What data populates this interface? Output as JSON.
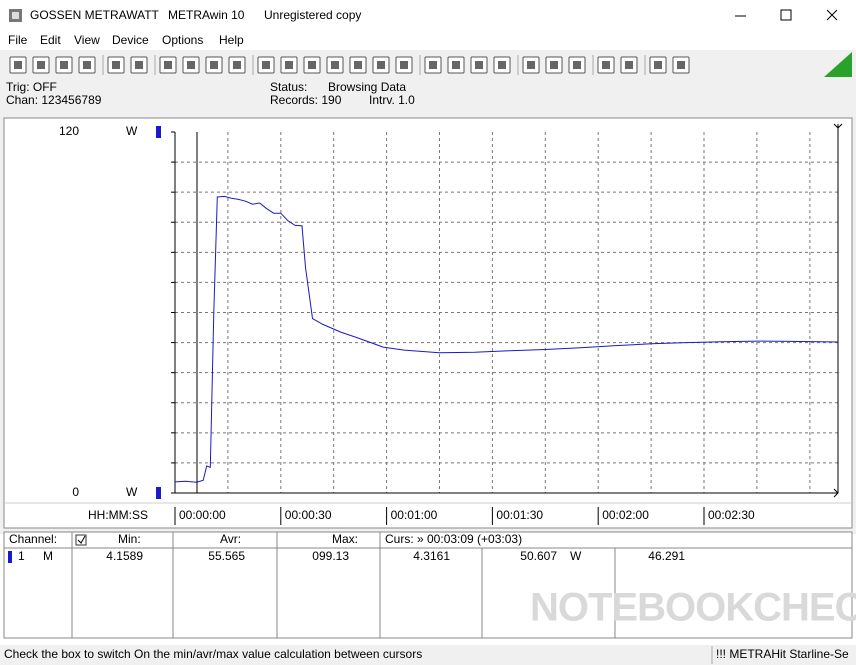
{
  "window": {
    "app": "GOSSEN METRAWATT",
    "product": "METRAwin 10",
    "license": "Unregistered copy"
  },
  "menu": [
    "File",
    "Edit",
    "View",
    "Device",
    "Options",
    "Help"
  ],
  "info": {
    "trig": "Trig: OFF",
    "chan": "Chan:  123456789",
    "status_label": "Status:",
    "status": "Browsing Data",
    "records": "Records: 190",
    "interval": "Intrv. 1.0"
  },
  "chart_data": {
    "type": "line",
    "color": "#1a1acc",
    "x": [
      0,
      3,
      6,
      8,
      9,
      10,
      11,
      12,
      14,
      16,
      18,
      20,
      22,
      24,
      26,
      28,
      30,
      32,
      34,
      36,
      37,
      39,
      42,
      47,
      52,
      59,
      65,
      75,
      85,
      95,
      105,
      115,
      125,
      135,
      145,
      155,
      165,
      175,
      188
    ],
    "values": [
      3.7,
      3.9,
      3.6,
      4.2,
      9,
      8.5,
      60,
      98.4,
      98.6,
      98,
      97.6,
      97,
      96,
      96.4,
      94.5,
      93,
      93,
      90.5,
      89,
      88.8,
      75,
      58,
      56,
      53.5,
      51.5,
      48.5,
      47.5,
      46.6,
      46.8,
      47.3,
      47.7,
      48.3,
      49,
      49.6,
      50,
      50.3,
      50.5,
      50.4,
      50.2
    ],
    "xlim": [
      0,
      188
    ],
    "ylim": [
      0,
      120
    ],
    "xticks": [
      {
        "value": 0,
        "label": "00:00:00"
      },
      {
        "value": 30,
        "label": "00:00:30"
      },
      {
        "value": 60,
        "label": "00:01:00"
      },
      {
        "value": 90,
        "label": "00:01:30"
      },
      {
        "value": 120,
        "label": "00:02:00"
      },
      {
        "value": 150,
        "label": "00:02:30"
      }
    ],
    "yticks": [
      0,
      120
    ],
    "y_unit": "W",
    "x_axis_label": "HH:MM:SS",
    "grid": true
  },
  "table": {
    "headers": [
      "Channel:",
      "Min:",
      "Avr:",
      "Max:",
      "Curs: » 00:03:09 (+03:03)"
    ],
    "row": {
      "channel": "1",
      "mode": "M",
      "min": "4.1589",
      "avr": "55.565",
      "max": "099.13",
      "curs1": "4.3161",
      "curs2": "50.607",
      "unit": "W",
      "curs3": "46.291"
    }
  },
  "watermark": "NOTEBOOKCHECK",
  "status_bar": {
    "hint": "Check the box to switch On the min/avr/max value calculation between cursors",
    "device": "!!! METRAHit Starline-Se"
  }
}
